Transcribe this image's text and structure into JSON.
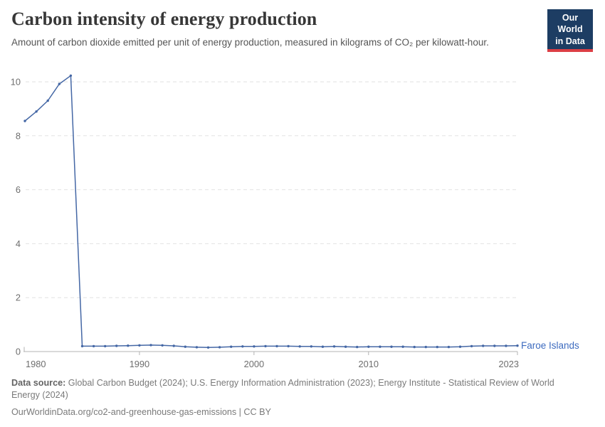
{
  "header": {
    "logo": {
      "line1": "Our World",
      "line2": "in Data",
      "bg_color": "#1d3d63",
      "accent_color": "#dc3e45"
    }
  },
  "chart_data": {
    "type": "line",
    "title": "Carbon intensity of energy production",
    "subtitle": "Amount of carbon dioxide emitted per unit of energy production, measured in kilograms of CO₂ per kilowatt-hour.",
    "xlabel": "",
    "ylabel": "",
    "x_ticks": [
      1980,
      1990,
      2000,
      2010,
      2023
    ],
    "y_ticks": [
      0,
      2,
      4,
      6,
      8,
      10
    ],
    "xlim": [
      1980,
      2023
    ],
    "ylim": [
      0,
      10.4
    ],
    "grid": "horizontal-dashed",
    "legend_position": "end-of-line-label",
    "end_label": "Faroe Islands",
    "end_label_color": "#3d6bbf",
    "axis_color": "#b3b3b3",
    "grid_color": "#e2e2e2",
    "tick_text_color": "#6e6e6e",
    "series": [
      {
        "name": "Faroe Islands",
        "color": "#4467a5",
        "x": [
          1980,
          1981,
          1982,
          1983,
          1984,
          1985,
          1986,
          1987,
          1988,
          1989,
          1990,
          1991,
          1992,
          1993,
          1994,
          1995,
          1996,
          1997,
          1998,
          1999,
          2000,
          2001,
          2002,
          2003,
          2004,
          2005,
          2006,
          2007,
          2008,
          2009,
          2010,
          2011,
          2012,
          2013,
          2014,
          2015,
          2016,
          2017,
          2018,
          2019,
          2020,
          2021,
          2022,
          2023
        ],
        "values": [
          8.55,
          8.9,
          9.3,
          9.92,
          10.23,
          0.2,
          0.2,
          0.2,
          0.21,
          0.22,
          0.23,
          0.24,
          0.23,
          0.21,
          0.18,
          0.16,
          0.15,
          0.16,
          0.18,
          0.19,
          0.19,
          0.2,
          0.2,
          0.2,
          0.19,
          0.19,
          0.18,
          0.19,
          0.18,
          0.17,
          0.18,
          0.18,
          0.18,
          0.18,
          0.17,
          0.17,
          0.17,
          0.17,
          0.18,
          0.2,
          0.21,
          0.21,
          0.21,
          0.22
        ]
      }
    ]
  },
  "footer": {
    "source_label": "Data source:",
    "source_text": "Global Carbon Budget (2024); U.S. Energy Information Administration (2023); Energy Institute - Statistical Review of World Energy (2024)",
    "link_text": "OurWorldinData.org/co2-and-greenhouse-gas-emissions | CC BY"
  }
}
